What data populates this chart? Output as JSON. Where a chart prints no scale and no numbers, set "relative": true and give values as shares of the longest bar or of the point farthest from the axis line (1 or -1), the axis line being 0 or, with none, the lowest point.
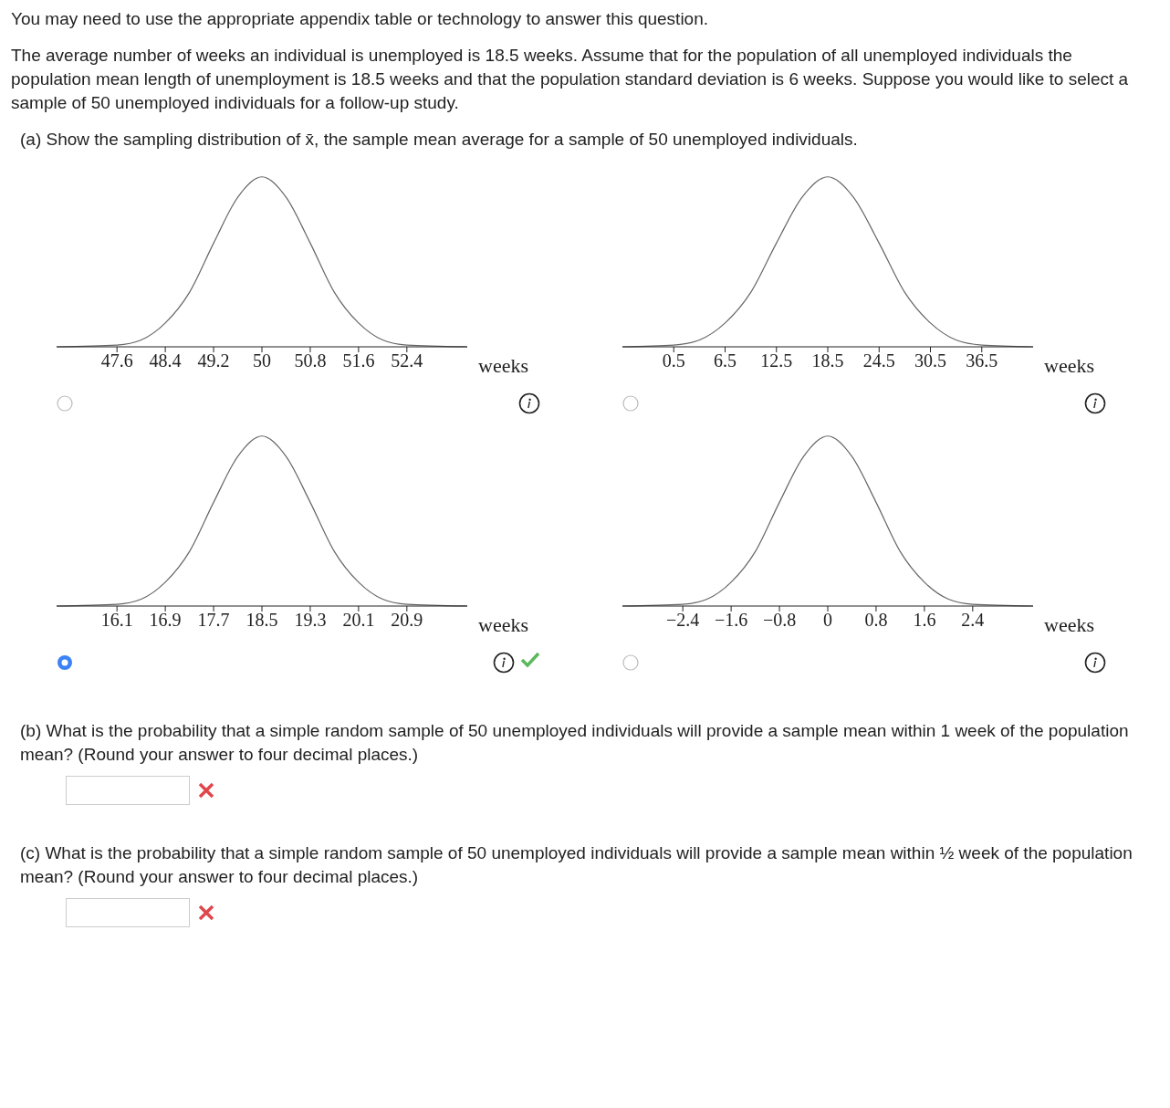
{
  "chart_data": [
    {
      "type": "line",
      "title": "(a) Show the sampling distribution of x̄, the sample mean average for a sample of 50 unemployed individuals.",
      "annotations": [
        "You may need to use the appropriate appendix table or technology to answer this question.",
        "The average number of weeks an individual is unemployed is 18.5 weeks. Assume that for the population of all unemployed individuals the population mean length of unemployment is 18.5 weeks and that the population standard deviation is 6 weeks. Suppose you would like to select a sample of 50 unemployed individuals for a follow-up study."
      ],
      "relative": true,
      "xlabel": "weeks",
      "color": "#666666",
      "xlim": [
        46.6,
        53.4
      ],
      "xticks": [
        47.6,
        48.4,
        49.2,
        50,
        50.8,
        51.6,
        52.4
      ],
      "x": [
        46.6,
        47.6,
        48.0,
        48.4,
        48.8,
        49.2,
        49.6,
        50,
        50.4,
        50.8,
        51.2,
        51.6,
        52.0,
        52.4,
        53.4
      ],
      "values": [
        0,
        0.01,
        0.04,
        0.14,
        0.32,
        0.61,
        0.88,
        1,
        0.88,
        0.61,
        0.32,
        0.14,
        0.04,
        0.01,
        0
      ]
    },
    {
      "type": "line",
      "relative": true,
      "xlabel": "weeks",
      "color": "#666666",
      "xlim": [
        -5.5,
        42.5
      ],
      "xticks": [
        0.5,
        6.5,
        12.5,
        18.5,
        24.5,
        30.5,
        36.5
      ],
      "x": [
        -5.5,
        0.5,
        3.5,
        6.5,
        9.5,
        12.5,
        15.5,
        18.5,
        21.5,
        24.5,
        27.5,
        30.5,
        33.5,
        36.5,
        42.5
      ],
      "values": [
        0,
        0.01,
        0.04,
        0.14,
        0.32,
        0.61,
        0.88,
        1,
        0.88,
        0.61,
        0.32,
        0.14,
        0.04,
        0.01,
        0
      ]
    },
    {
      "type": "line",
      "relative": true,
      "xlabel": "weeks",
      "color": "#666666",
      "xlim": [
        15.1,
        21.9
      ],
      "xticks": [
        16.1,
        16.9,
        17.7,
        18.5,
        19.3,
        20.1,
        20.9
      ],
      "x": [
        15.1,
        16.1,
        16.5,
        16.9,
        17.3,
        17.7,
        18.1,
        18.5,
        18.9,
        19.3,
        19.7,
        20.1,
        20.5,
        20.9,
        21.9
      ],
      "values": [
        0,
        0.01,
        0.04,
        0.14,
        0.32,
        0.61,
        0.88,
        1,
        0.88,
        0.61,
        0.32,
        0.14,
        0.04,
        0.01,
        0
      ]
    },
    {
      "type": "line",
      "annotations": [
        "(b) What is the probability that a simple random sample of 50 unemployed individuals will provide a sample mean within 1 week of the population mean? (Round your answer to four decimal places.)",
        "(c) What is the probability that a simple random sample of 50 unemployed individuals will provide a sample mean within ½ week of the population mean? (Round your answer to four decimal places.)"
      ],
      "relative": true,
      "xlabel": "weeks",
      "color": "#666666",
      "xlim": [
        -3.4,
        3.4
      ],
      "xticks": [
        {
          "value": -2.4,
          "label": "−2.4"
        },
        {
          "value": -1.6,
          "label": "−1.6"
        },
        {
          "value": -0.8,
          "label": "−0.8"
        },
        0,
        0.8,
        1.6,
        2.4
      ],
      "x": [
        -3.4,
        -2.4,
        -2.0,
        -1.6,
        -1.2,
        -0.8,
        -0.4,
        0,
        0.4,
        0.8,
        1.2,
        1.6,
        2.0,
        2.4,
        3.4
      ],
      "values": [
        0,
        0.01,
        0.04,
        0.14,
        0.32,
        0.61,
        0.88,
        1,
        0.88,
        0.61,
        0.32,
        0.14,
        0.04,
        0.01,
        0
      ]
    }
  ]
}
